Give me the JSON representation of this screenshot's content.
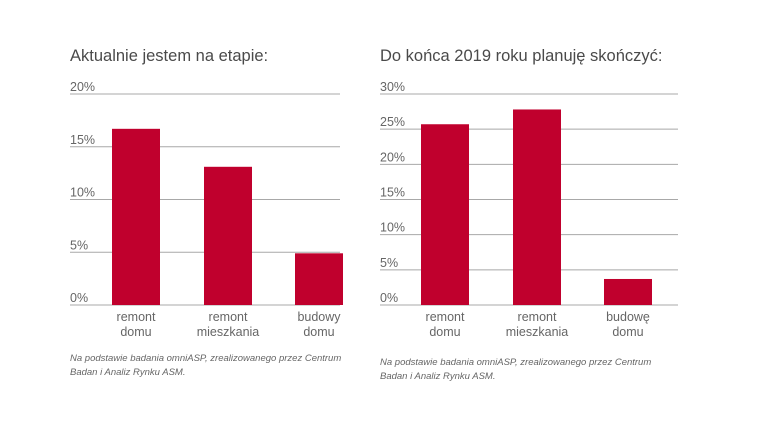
{
  "chart_data": [
    {
      "type": "bar",
      "title": "Aktualnie jestem na etapie:",
      "categories": [
        [
          "remont",
          "domu"
        ],
        [
          "remont",
          "mieszkania"
        ],
        [
          "budowy",
          "domu"
        ]
      ],
      "values": [
        16.7,
        13.1,
        4.9
      ],
      "y_ticks": [
        "0%",
        "5%",
        "10%",
        "15%",
        "20%"
      ],
      "ylim": [
        0,
        20
      ],
      "tick_step": 5,
      "bar_color": "#c0002d",
      "grid": true,
      "note": "Na podstawie badania omniASP, zrealizowanego przez Centrum Badan i Analiz Rynku ASM."
    },
    {
      "type": "bar",
      "title": "Do końca 2019 roku planuję skończyć:",
      "categories": [
        [
          "remont",
          "domu"
        ],
        [
          "remont",
          "mieszkania"
        ],
        [
          "budowę",
          "domu"
        ]
      ],
      "values": [
        25.7,
        27.8,
        3.7
      ],
      "y_ticks": [
        "0%",
        "5%",
        "10%",
        "15%",
        "20%",
        "25%",
        "30%"
      ],
      "ylim": [
        0,
        30
      ],
      "tick_step": 5,
      "bar_color": "#c0002d",
      "grid": true,
      "note": "Na podstawie badania omniASP, zrealizowanego przez Centrum Badan i Analiz Rynku ASM."
    }
  ]
}
